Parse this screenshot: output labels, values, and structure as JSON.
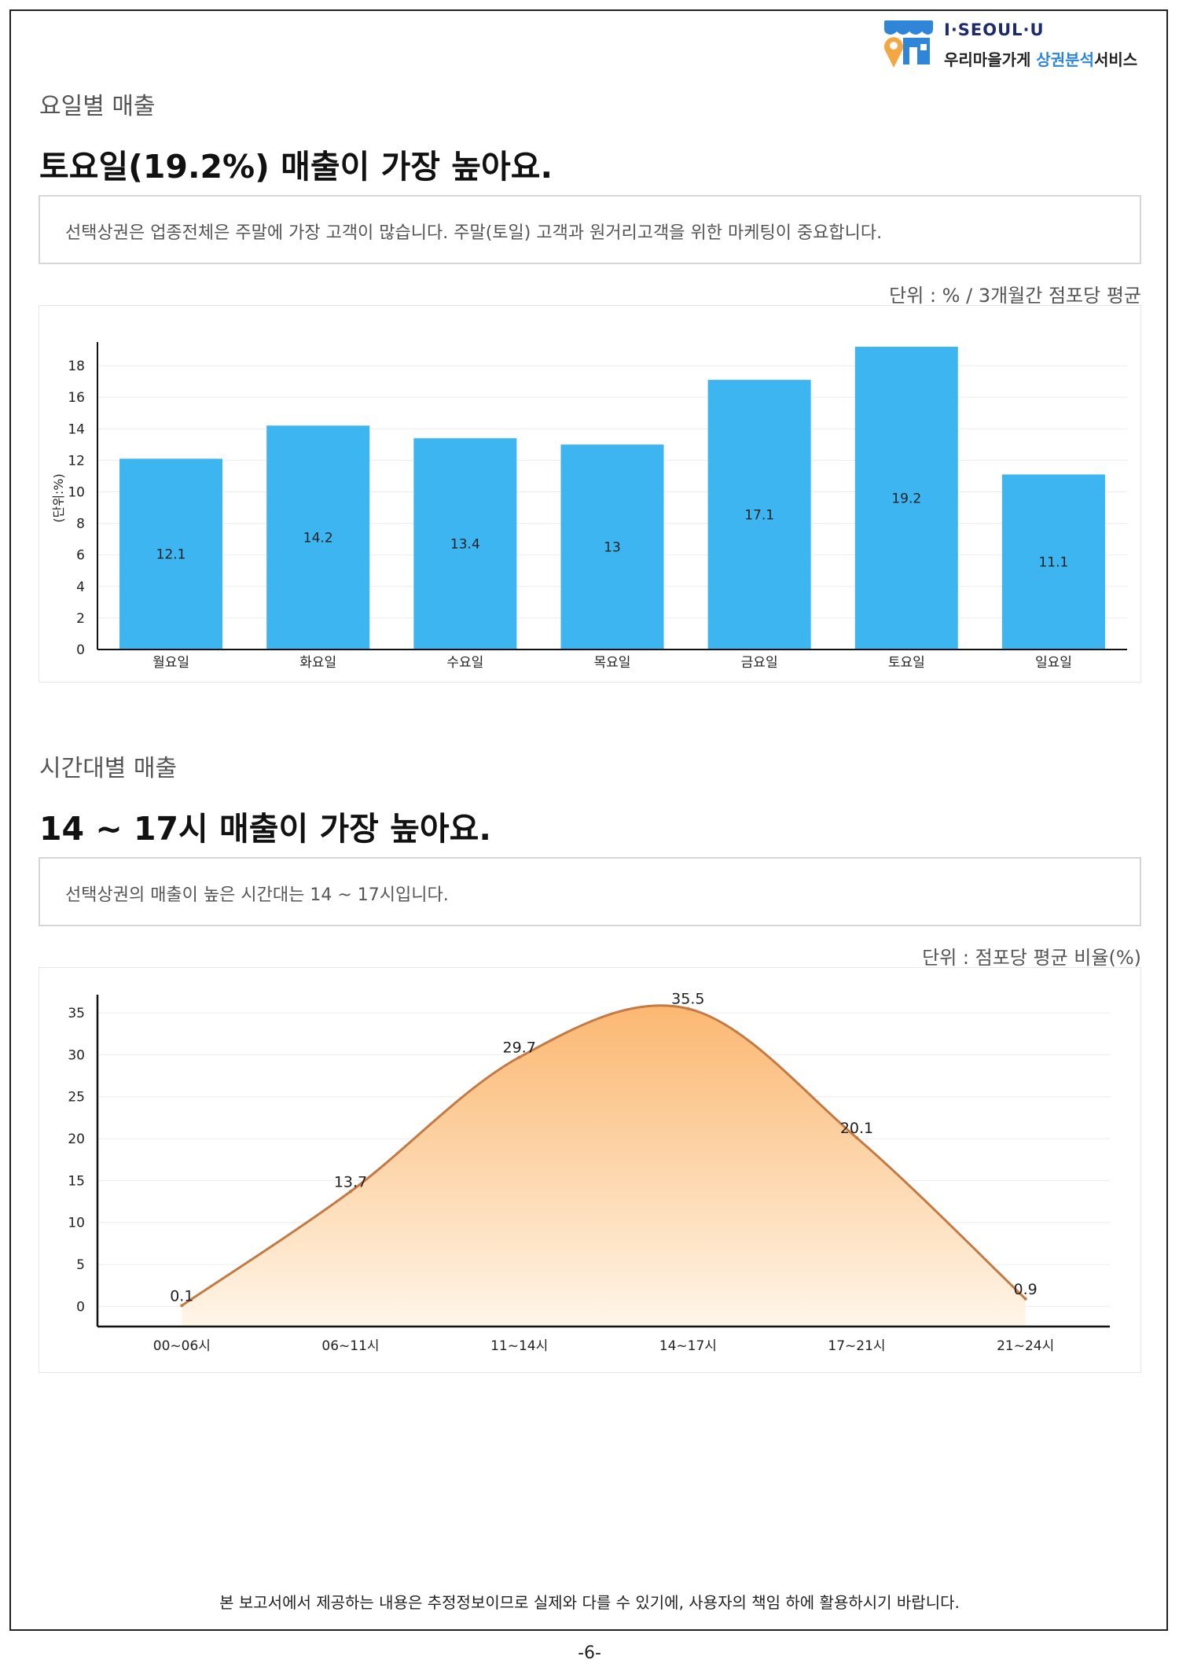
{
  "header": {
    "brand": "I·SEOUL·U",
    "service_prefix": "우리마을가게 ",
    "service_accent": "상권분석",
    "service_suffix": "서비스",
    "brand_color": "#1d2a6b",
    "accent_color": "#2f86d9",
    "icon": "shop-pin-icon"
  },
  "weekday_section": {
    "label": "요일별 매출",
    "headline": "토요일(19.2%) 매출이 가장 높아요.",
    "note": "선택상권은 업종전체은 주말에 가장 고객이 많습니다. 주말(토일) 고객과 원거리고객을 위한 마케팅이 중요합니다.",
    "unit": "단위 : % / 3개월간 점포당 평균"
  },
  "time_section": {
    "label": "시간대별 매출",
    "headline": "14 ~ 17시 매출이 가장 높아요.",
    "note": "선택상권의 매출이 높은 시간대는 14 ~ 17시입니다.",
    "unit": "단위 : 점포당 평균 비율(%)"
  },
  "footer": {
    "disclaimer": "본 보고서에서 제공하는 내용은 추정정보이므로 실제와 다를 수 있기에, 사용자의 책임 하에 활용하시기 바랍니다.",
    "page": "-6-"
  },
  "chart_data": [
    {
      "type": "bar",
      "categories": [
        "월요일",
        "화요일",
        "수요일",
        "목요일",
        "금요일",
        "토요일",
        "일요일"
      ],
      "values": [
        12.1,
        14.2,
        13.4,
        13,
        17.1,
        19.2,
        11.1
      ],
      "value_labels": [
        "12.1",
        "14.2",
        "13.4",
        "13",
        "17.1",
        "19.2",
        "11.1"
      ],
      "ylabel": "(단위:%)",
      "ylim": [
        0,
        19.2
      ],
      "yticks": [
        0,
        2,
        4,
        6,
        8,
        10,
        12,
        14,
        16,
        18
      ],
      "bar_color": "#3db5f1",
      "grid": true
    },
    {
      "type": "area",
      "categories": [
        "00~06시",
        "06~11시",
        "11~14시",
        "14~17시",
        "17~21시",
        "21~24시"
      ],
      "values": [
        0.1,
        13.7,
        29.7,
        35.5,
        20.1,
        0.9
      ],
      "value_labels": [
        "0.1",
        "13.7",
        "29.7",
        "35.5",
        "20.1",
        "0.9"
      ],
      "ylim": [
        -2.4,
        36.6
      ],
      "yticks": [
        0,
        5,
        10,
        15,
        20,
        25,
        30,
        35
      ],
      "line_color": "#c47a45",
      "fill_top_color": "#fbb46a",
      "fill_bottom_color": "#fff6e9",
      "grid": true
    }
  ]
}
